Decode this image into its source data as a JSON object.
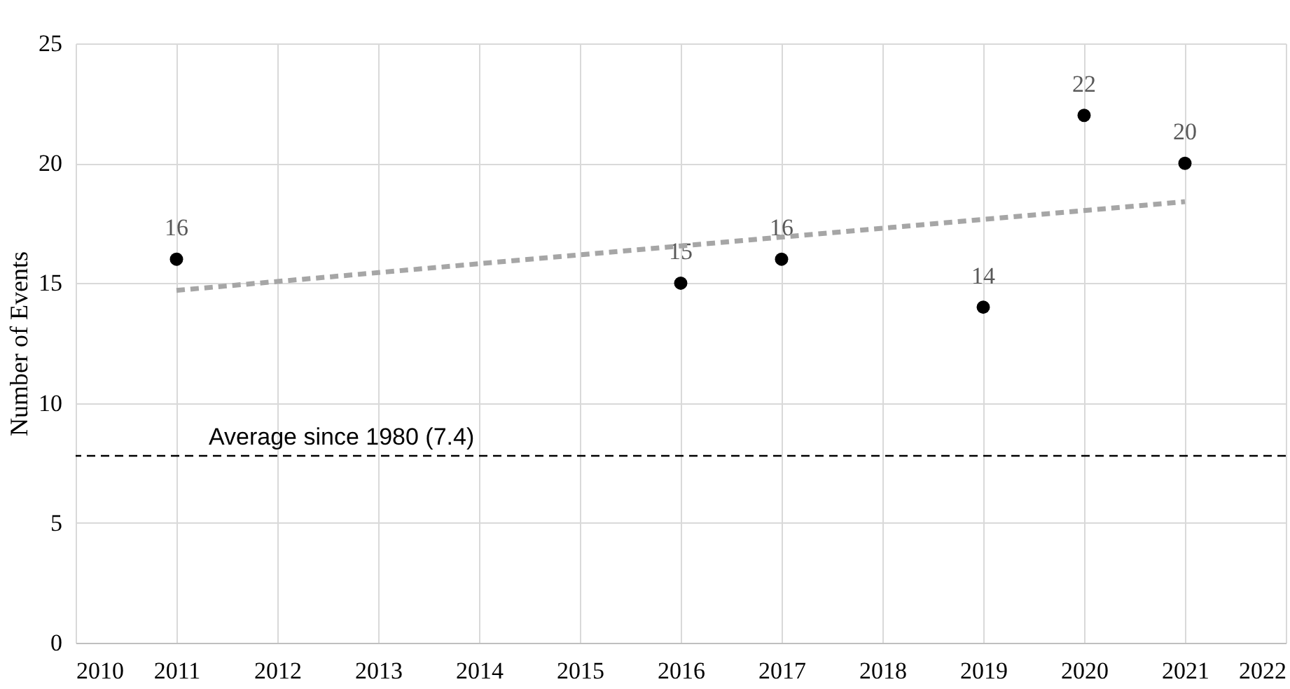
{
  "chart_data": {
    "type": "scatter",
    "ylabel": "Number of Events",
    "xlim": [
      2010,
      2022
    ],
    "xticks": [
      2010,
      2011,
      2012,
      2013,
      2014,
      2015,
      2016,
      2017,
      2018,
      2019,
      2020,
      2021,
      2022
    ],
    "ylim": [
      0,
      25
    ],
    "yticks": [
      0,
      5,
      10,
      15,
      20,
      25
    ],
    "grid": true,
    "series": [
      {
        "color": "#000000",
        "marker": "circle",
        "x": [
          2011,
          2016,
          2017,
          2019,
          2020,
          2021
        ],
        "values": [
          16,
          15,
          16,
          14,
          22,
          20
        ],
        "value_labels": [
          "16",
          "15",
          "16",
          "14",
          "22",
          "20"
        ]
      },
      {
        "type": "line",
        "color": "#a6a6a6",
        "line_style": "dashed",
        "marker": "none",
        "x": [
          2011,
          2021
        ],
        "values": [
          14.7,
          18.4
        ]
      }
    ],
    "ref_lines": [
      {
        "axis": "y",
        "value": 7.8,
        "label": "Average since 1980 (7.4)",
        "color": "#000000",
        "line_style": "dashed"
      }
    ]
  }
}
